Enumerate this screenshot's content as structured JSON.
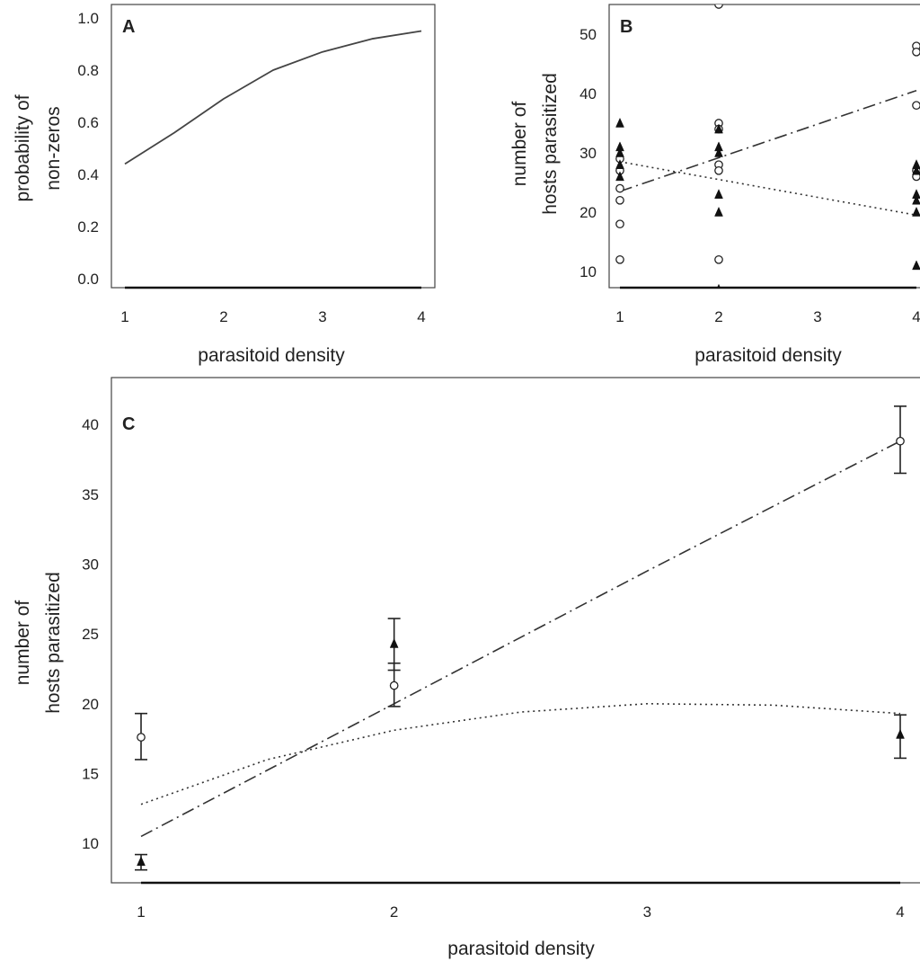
{
  "chart_data": [
    {
      "panel": "A",
      "type": "line",
      "xlabel": "parasitoid density",
      "ylabel_lines": [
        "probability of",
        "non-zeros"
      ],
      "xlim": [
        1,
        4
      ],
      "ylim": [
        0,
        1
      ],
      "x_ticks": [
        "1",
        "2",
        "3",
        "4"
      ],
      "y_ticks": [
        "0.0",
        "0.2",
        "0.4",
        "0.6",
        "0.8",
        "1.0"
      ],
      "series": [
        {
          "style": "solid",
          "x": [
            1,
            1.5,
            2,
            2.5,
            3,
            3.5,
            4
          ],
          "y": [
            0.44,
            0.56,
            0.69,
            0.8,
            0.87,
            0.92,
            0.95
          ]
        }
      ]
    },
    {
      "panel": "B",
      "type": "scatter",
      "xlabel": "parasitoid density",
      "ylabel_lines": [
        "number of",
        "hosts parasitized"
      ],
      "xlim": [
        1,
        4
      ],
      "ylim": [
        5,
        55
      ],
      "x_ticks": [
        "1",
        "2",
        "3",
        "4"
      ],
      "y_ticks": [
        "10",
        "20",
        "30",
        "40",
        "50"
      ],
      "series": [
        {
          "marker": "open-circle",
          "x": [
            1,
            1,
            1,
            1,
            1,
            1,
            2,
            2,
            2,
            2,
            2,
            2,
            4,
            4,
            4,
            4,
            4
          ],
          "y": [
            29,
            27,
            24,
            22,
            18,
            12,
            55,
            35,
            34,
            28,
            27,
            12,
            48,
            47,
            38,
            27,
            26
          ]
        },
        {
          "marker": "filled-triangle",
          "x": [
            1,
            1,
            1,
            1,
            1,
            2,
            2,
            2,
            2,
            2,
            2,
            4,
            4,
            4,
            4,
            4,
            4
          ],
          "y": [
            35,
            31,
            30,
            28,
            26,
            34,
            31,
            30,
            23,
            20,
            7,
            28,
            27,
            23,
            22,
            20,
            11
          ]
        }
      ],
      "fit_lines": [
        {
          "style": "dash-dot",
          "x": [
            1,
            4
          ],
          "y": [
            23.5,
            40.5
          ]
        },
        {
          "style": "dotted",
          "x": [
            1,
            4
          ],
          "y": [
            28.5,
            19.5
          ]
        }
      ]
    },
    {
      "panel": "C",
      "type": "scatter",
      "xlabel": "parasitoid density",
      "ylabel_lines": [
        "number of",
        "hosts parasitized"
      ],
      "xlim": [
        1,
        4
      ],
      "ylim": [
        7.5,
        42
      ],
      "x_ticks": [
        "1",
        "2",
        "3",
        "4"
      ],
      "y_ticks": [
        "10",
        "15",
        "20",
        "25",
        "30",
        "35",
        "40"
      ],
      "series": [
        {
          "marker": "open-circle",
          "x": [
            1,
            2,
            4
          ],
          "y": [
            17.6,
            21.3,
            38.8
          ],
          "err_low": [
            16,
            19.8,
            36.5
          ],
          "err_high": [
            19.3,
            22.9,
            41.3
          ]
        },
        {
          "marker": "filled-triangle",
          "x": [
            1,
            2,
            4
          ],
          "y": [
            8.7,
            24.3,
            17.8
          ],
          "err_low": [
            8.1,
            22.4,
            16.1
          ],
          "err_high": [
            9.2,
            26.1,
            19.2
          ]
        }
      ],
      "fit_lines": [
        {
          "style": "dash-dot",
          "x": [
            1,
            2,
            3,
            4
          ],
          "y": [
            10.5,
            20,
            29.5,
            38.8
          ]
        },
        {
          "style": "dotted",
          "x": [
            1,
            1.5,
            2,
            2.5,
            3,
            3.5,
            4
          ],
          "y": [
            12.8,
            16,
            18.1,
            19.4,
            20,
            19.9,
            19.3
          ]
        }
      ]
    }
  ]
}
